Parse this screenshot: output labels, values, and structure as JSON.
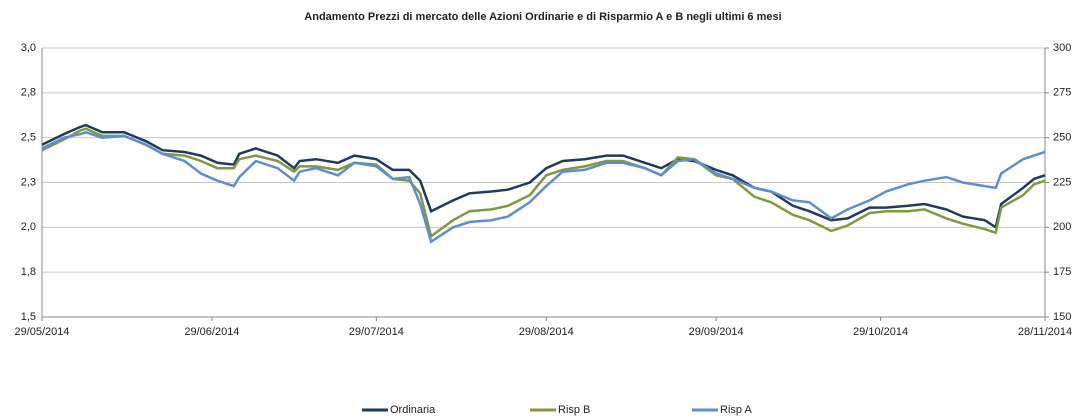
{
  "chart_data": {
    "type": "line",
    "title": "Andamento Prezzi di mercato delle Azioni Ordinarie e di Risparmio A e B negli ultimi 6 mesi",
    "x": [
      "29/05/2014",
      "02/06/2014",
      "05/06/2014",
      "06/06/2014",
      "09/06/2014",
      "13/06/2014",
      "17/06/2014",
      "20/06/2014",
      "24/06/2014",
      "27/06/2014",
      "30/06/2014",
      "03/07/2014",
      "04/07/2014",
      "07/07/2014",
      "11/07/2014",
      "14/07/2014",
      "15/07/2014",
      "18/07/2014",
      "22/07/2014",
      "25/07/2014",
      "29/07/2014",
      "01/08/2014",
      "04/08/2014",
      "06/08/2014",
      "08/08/2014",
      "12/08/2014",
      "15/08/2014",
      "19/08/2014",
      "22/08/2014",
      "26/08/2014",
      "29/08/2014",
      "01/09/2014",
      "05/09/2014",
      "09/09/2014",
      "12/09/2014",
      "16/09/2014",
      "19/09/2014",
      "22/09/2014",
      "25/09/2014",
      "29/09/2014",
      "02/10/2014",
      "06/10/2014",
      "09/10/2014",
      "13/10/2014",
      "16/10/2014",
      "20/10/2014",
      "23/10/2014",
      "27/10/2014",
      "30/10/2014",
      "03/11/2014",
      "06/11/2014",
      "10/11/2014",
      "13/11/2014",
      "17/11/2014",
      "19/11/2014",
      "20/11/2014",
      "24/11/2014",
      "26/11/2014",
      "28/11/2014"
    ],
    "series": [
      {
        "name": "Ordinaria",
        "color": "#1f3a5a",
        "values": [
          2.46,
          2.52,
          2.56,
          2.57,
          2.53,
          2.53,
          2.48,
          2.43,
          2.42,
          2.4,
          2.36,
          2.35,
          2.41,
          2.44,
          2.4,
          2.33,
          2.37,
          2.38,
          2.36,
          2.4,
          2.38,
          2.32,
          2.32,
          2.26,
          2.09,
          2.15,
          2.19,
          2.2,
          2.21,
          2.25,
          2.33,
          2.37,
          2.38,
          2.4,
          2.4,
          2.36,
          2.33,
          2.38,
          2.37,
          2.32,
          2.29,
          2.22,
          2.2,
          2.12,
          2.09,
          2.04,
          2.05,
          2.11,
          2.11,
          2.12,
          2.13,
          2.1,
          2.06,
          2.04,
          2.0,
          2.13,
          2.22,
          2.27,
          2.29
        ]
      },
      {
        "name": "Risp B",
        "color": "#7f9a3c",
        "axis": "y2",
        "values": [
          243,
          249,
          254,
          255,
          251,
          251,
          246,
          241,
          240,
          237,
          233,
          233,
          238,
          240,
          237,
          231,
          234,
          234,
          232,
          236,
          235,
          227,
          226,
          219,
          195,
          204,
          209,
          210,
          212,
          218,
          229,
          232,
          234,
          237,
          237,
          233,
          229,
          239,
          238,
          229,
          227,
          217,
          214,
          207,
          204,
          198,
          201,
          208,
          209,
          209,
          210,
          205,
          202,
          199,
          197,
          211,
          218,
          224,
          226
        ]
      },
      {
        "name": "Risp A",
        "color": "#5b8fd1",
        "axis": "y2",
        "values": [
          244,
          250,
          252,
          253,
          250,
          251,
          246,
          241,
          237,
          230,
          226,
          223,
          228,
          237,
          233,
          226,
          231,
          233,
          229,
          236,
          234,
          227,
          228,
          213,
          192,
          200,
          203,
          204,
          206,
          214,
          223,
          231,
          232,
          236,
          236,
          233,
          229,
          237,
          238,
          230,
          227,
          222,
          220,
          215,
          214,
          205,
          210,
          215,
          220,
          224,
          226,
          228,
          225,
          223,
          222,
          230,
          238,
          240,
          242
        ]
      }
    ],
    "xlim": [
      "29/05/2014",
      "28/11/2014"
    ],
    "xticks": [
      "29/05/2014",
      "29/06/2014",
      "29/07/2014",
      "29/08/2014",
      "29/09/2014",
      "29/10/2014",
      "28/11/2014"
    ],
    "ylim": [
      1.5,
      3.0
    ],
    "yticks": [
      {
        "value": 1.5,
        "label": "1,5"
      },
      {
        "value": 1.75,
        "label": "1,8"
      },
      {
        "value": 2.0,
        "label": "2,0"
      },
      {
        "value": 2.25,
        "label": "2,3"
      },
      {
        "value": 2.5,
        "label": "2,5"
      },
      {
        "value": 2.75,
        "label": "2,8"
      },
      {
        "value": 3.0,
        "label": "3,0"
      }
    ],
    "y2lim": [
      150,
      300
    ],
    "y2ticks": [
      150,
      175,
      200,
      225,
      250,
      275,
      300
    ],
    "grid": true,
    "legend": "bottom"
  }
}
